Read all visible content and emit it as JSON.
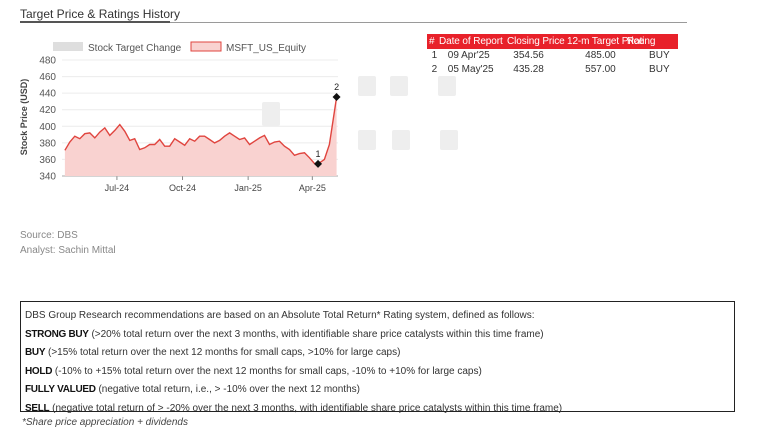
{
  "header": {
    "title": "Target Price & Ratings History"
  },
  "chart_data": {
    "type": "line",
    "legend": [
      "Stock Target Change",
      "MSFT_US_Equity"
    ],
    "ylabel": "Stock Price (USD)",
    "ylim": [
      340,
      480
    ],
    "yticks": [
      340,
      360,
      380,
      400,
      420,
      440,
      460,
      480
    ],
    "xticks": [
      "Jul-24",
      "Oct-24",
      "Jan-25",
      "Apr-25"
    ],
    "series": [
      {
        "name": "MSFT_US_Equity",
        "values": [
          {
            "x": "2024-04-19",
            "y": 371
          },
          {
            "x": "2024-04-26",
            "y": 381
          },
          {
            "x": "2024-05-03",
            "y": 388
          },
          {
            "x": "2024-05-10",
            "y": 385
          },
          {
            "x": "2024-05-17",
            "y": 391
          },
          {
            "x": "2024-05-24",
            "y": 392
          },
          {
            "x": "2024-05-31",
            "y": 386
          },
          {
            "x": "2024-06-07",
            "y": 393
          },
          {
            "x": "2024-06-14",
            "y": 398
          },
          {
            "x": "2024-06-21",
            "y": 389
          },
          {
            "x": "2024-06-28",
            "y": 395
          },
          {
            "x": "2024-07-05",
            "y": 402
          },
          {
            "x": "2024-07-12",
            "y": 394
          },
          {
            "x": "2024-07-19",
            "y": 383
          },
          {
            "x": "2024-07-26",
            "y": 385
          },
          {
            "x": "2024-08-02",
            "y": 372
          },
          {
            "x": "2024-08-09",
            "y": 374
          },
          {
            "x": "2024-08-16",
            "y": 378
          },
          {
            "x": "2024-08-23",
            "y": 378
          },
          {
            "x": "2024-08-30",
            "y": 384
          },
          {
            "x": "2024-09-06",
            "y": 376
          },
          {
            "x": "2024-09-13",
            "y": 376
          },
          {
            "x": "2024-09-20",
            "y": 385
          },
          {
            "x": "2024-09-27",
            "y": 381
          },
          {
            "x": "2024-10-04",
            "y": 377
          },
          {
            "x": "2024-10-11",
            "y": 385
          },
          {
            "x": "2024-10-18",
            "y": 382
          },
          {
            "x": "2024-10-25",
            "y": 388
          },
          {
            "x": "2024-11-01",
            "y": 388
          },
          {
            "x": "2024-11-08",
            "y": 384
          },
          {
            "x": "2024-11-15",
            "y": 380
          },
          {
            "x": "2024-11-22",
            "y": 383
          },
          {
            "x": "2024-11-29",
            "y": 388
          },
          {
            "x": "2024-12-06",
            "y": 392
          },
          {
            "x": "2024-12-13",
            "y": 388
          },
          {
            "x": "2024-12-20",
            "y": 384
          },
          {
            "x": "2024-12-27",
            "y": 386
          },
          {
            "x": "2025-01-03",
            "y": 378
          },
          {
            "x": "2025-01-10",
            "y": 382
          },
          {
            "x": "2025-01-17",
            "y": 386
          },
          {
            "x": "2025-01-24",
            "y": 389
          },
          {
            "x": "2025-01-31",
            "y": 378
          },
          {
            "x": "2025-02-07",
            "y": 381
          },
          {
            "x": "2025-02-14",
            "y": 382
          },
          {
            "x": "2025-02-21",
            "y": 376
          },
          {
            "x": "2025-02-28",
            "y": 372
          },
          {
            "x": "2025-03-07",
            "y": 365
          },
          {
            "x": "2025-03-14",
            "y": 367
          },
          {
            "x": "2025-03-21",
            "y": 368
          },
          {
            "x": "2025-03-28",
            "y": 362
          },
          {
            "x": "2025-04-04",
            "y": 355
          },
          {
            "x": "2025-04-09",
            "y": 354.56
          },
          {
            "x": "2025-04-18",
            "y": 360
          },
          {
            "x": "2025-04-25",
            "y": 378
          },
          {
            "x": "2025-05-05",
            "y": 435.28
          }
        ]
      }
    ],
    "markers": [
      {
        "label": "1",
        "x": "2025-04-09",
        "y": 354.56
      },
      {
        "label": "2",
        "x": "2025-05-05",
        "y": 435.28
      }
    ]
  },
  "table": {
    "headers": [
      "#",
      "Date of Report",
      "Closing Price",
      "12-m Target Price",
      "Rating"
    ],
    "rows": [
      [
        "1",
        "09 Apr'25",
        "354.56",
        "485.00",
        "BUY"
      ],
      [
        "2",
        "05 May'25",
        "435.28",
        "557.00",
        "BUY"
      ]
    ]
  },
  "source": {
    "source": "Source: DBS",
    "analyst": "Analyst: Sachin Mittal"
  },
  "ratings": {
    "intro": "DBS Group Research recommendations are based on an Absolute Total Return* Rating system, defined as follows:",
    "items": [
      {
        "term": "STRONG BUY",
        "desc": " (>20% total return over the next 3 months, with identifiable share price catalysts within this time frame)"
      },
      {
        "term": "BUY",
        "desc": " (>15% total return over the next 12 months for small caps, >10% for large caps)"
      },
      {
        "term": "HOLD",
        "desc": " (-10% to +15% total return over the next 12 months for small caps, -10% to +10% for large caps)"
      },
      {
        "term": "FULLY VALUED",
        "desc": " (negative total return, i.e., > -10% over the next 12 months)"
      },
      {
        "term": "SELL",
        "desc": " (negative total return of > -20% over the next 3 months, with identifiable share price catalysts within this time frame)"
      }
    ],
    "footnote": "*Share price appreciation + dividends"
  },
  "colors": {
    "accent_red": "#e8212a",
    "line": "#e0453f",
    "area": "#f9d2d0"
  }
}
